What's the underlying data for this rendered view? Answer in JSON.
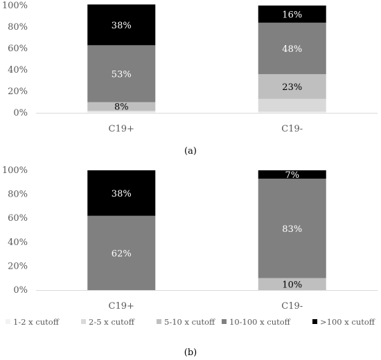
{
  "colors": {
    "1-2 x cutoff": "#f2f2f2",
    "2-5 x cutoff": "#d9d9d9",
    "5-10 x cutoff": "#bfbfbf",
    "10-100 x cutoff": "#808080",
    ">100 x cutoff": "#000000",
    "axis": "#d9d9d9",
    "tick_text": "#595959"
  },
  "legend": {
    "placement": "bottom",
    "entries": [
      "1-2 x cutoff",
      "2-5 x cutoff",
      "5-10 x cutoff",
      "10-100 x cutoff",
      ">100 x cutoff"
    ]
  },
  "panel_labels": [
    "(a)",
    "(b)"
  ],
  "chart_data": [
    {
      "type": "bar",
      "stacked": true,
      "categories": [
        "C19+",
        "C19-"
      ],
      "ylim": [
        0,
        100
      ],
      "yticks": [
        "0%",
        "20%",
        "40%",
        "60%",
        "80%",
        "100%"
      ],
      "grid": false,
      "series": [
        {
          "name": "1-2 x cutoff",
          "values": [
            1,
            1
          ],
          "labels": [
            "",
            ""
          ]
        },
        {
          "name": "2-5 x cutoff",
          "values": [
            1,
            12
          ],
          "labels": [
            "",
            ""
          ]
        },
        {
          "name": "5-10 x cutoff",
          "values": [
            8,
            23
          ],
          "labels": [
            "8%",
            "23%"
          ]
        },
        {
          "name": "10-100 x cutoff",
          "values": [
            53,
            48
          ],
          "labels": [
            "53%",
            "48%"
          ]
        },
        {
          "name": ">100 x cutoff",
          "values": [
            38,
            16
          ],
          "labels": [
            "38%",
            "16%"
          ]
        }
      ]
    },
    {
      "type": "bar",
      "stacked": true,
      "categories": [
        "C19+",
        "C19-"
      ],
      "ylim": [
        0,
        100
      ],
      "yticks": [
        "0%",
        "20%",
        "40%",
        "60%",
        "80%",
        "100%"
      ],
      "grid": false,
      "series": [
        {
          "name": "1-2 x cutoff",
          "values": [
            0,
            0
          ],
          "labels": [
            "",
            ""
          ]
        },
        {
          "name": "2-5 x cutoff",
          "values": [
            0,
            0
          ],
          "labels": [
            "",
            ""
          ]
        },
        {
          "name": "5-10 x cutoff",
          "values": [
            0,
            10
          ],
          "labels": [
            "",
            "10%"
          ]
        },
        {
          "name": "10-100 x cutoff",
          "values": [
            62,
            83
          ],
          "labels": [
            "62%",
            "83%"
          ]
        },
        {
          "name": ">100 x cutoff",
          "values": [
            38,
            7
          ],
          "labels": [
            "38%",
            "7%"
          ]
        }
      ]
    }
  ]
}
